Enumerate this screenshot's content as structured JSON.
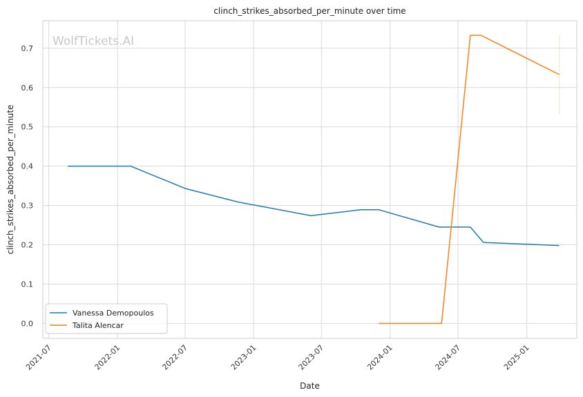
{
  "chart_data": {
    "type": "line",
    "title": "clinch_strikes_absorbed_per_minute over time",
    "xlabel": "Date",
    "ylabel": "clinch_strikes_absorbed_per_minute",
    "watermark": "WolfTickets.AI",
    "x_ticks": [
      "2021-07",
      "2022-01",
      "2022-07",
      "2023-01",
      "2023-07",
      "2024-01",
      "2024-07",
      "2025-01"
    ],
    "x_tick_dates": [
      "2021-07-01",
      "2022-01-01",
      "2022-07-01",
      "2023-01-01",
      "2023-07-01",
      "2024-01-01",
      "2024-07-01",
      "2025-01-01"
    ],
    "y_ticks": [
      "0.0",
      "0.1",
      "0.2",
      "0.3",
      "0.4",
      "0.5",
      "0.6",
      "0.7"
    ],
    "xlim": [
      "2021-06-15",
      "2025-05-15"
    ],
    "ylim": [
      -0.038,
      0.77
    ],
    "grid": true,
    "legend_position": "lower-left",
    "series": [
      {
        "name": "Vanessa Demopoulos",
        "color": "#1f77b4",
        "points": [
          {
            "x": "2021-08-21",
            "y": 0.4
          },
          {
            "x": "2022-02-05",
            "y": 0.4
          },
          {
            "x": "2022-07-02",
            "y": 0.343
          },
          {
            "x": "2022-11-19",
            "y": 0.309
          },
          {
            "x": "2023-06-03",
            "y": 0.274
          },
          {
            "x": "2023-10-14",
            "y": 0.289
          },
          {
            "x": "2023-12-02",
            "y": 0.289
          },
          {
            "x": "2024-05-11",
            "y": 0.245
          },
          {
            "x": "2024-08-03",
            "y": 0.245
          },
          {
            "x": "2024-09-07",
            "y": 0.206
          },
          {
            "x": "2025-03-29",
            "y": 0.198
          }
        ]
      },
      {
        "name": "Talita Alencar",
        "color": "#ff7f0e",
        "points": [
          {
            "x": "2023-12-02",
            "y": 0.0
          },
          {
            "x": "2024-05-18",
            "y": 0.0
          },
          {
            "x": "2024-08-03",
            "y": 0.733
          },
          {
            "x": "2024-08-31",
            "y": 0.733
          },
          {
            "x": "2025-03-29",
            "y": 0.633
          }
        ],
        "band": {
          "x": "2025-03-29",
          "low": 0.533,
          "high": 0.733
        }
      }
    ]
  }
}
